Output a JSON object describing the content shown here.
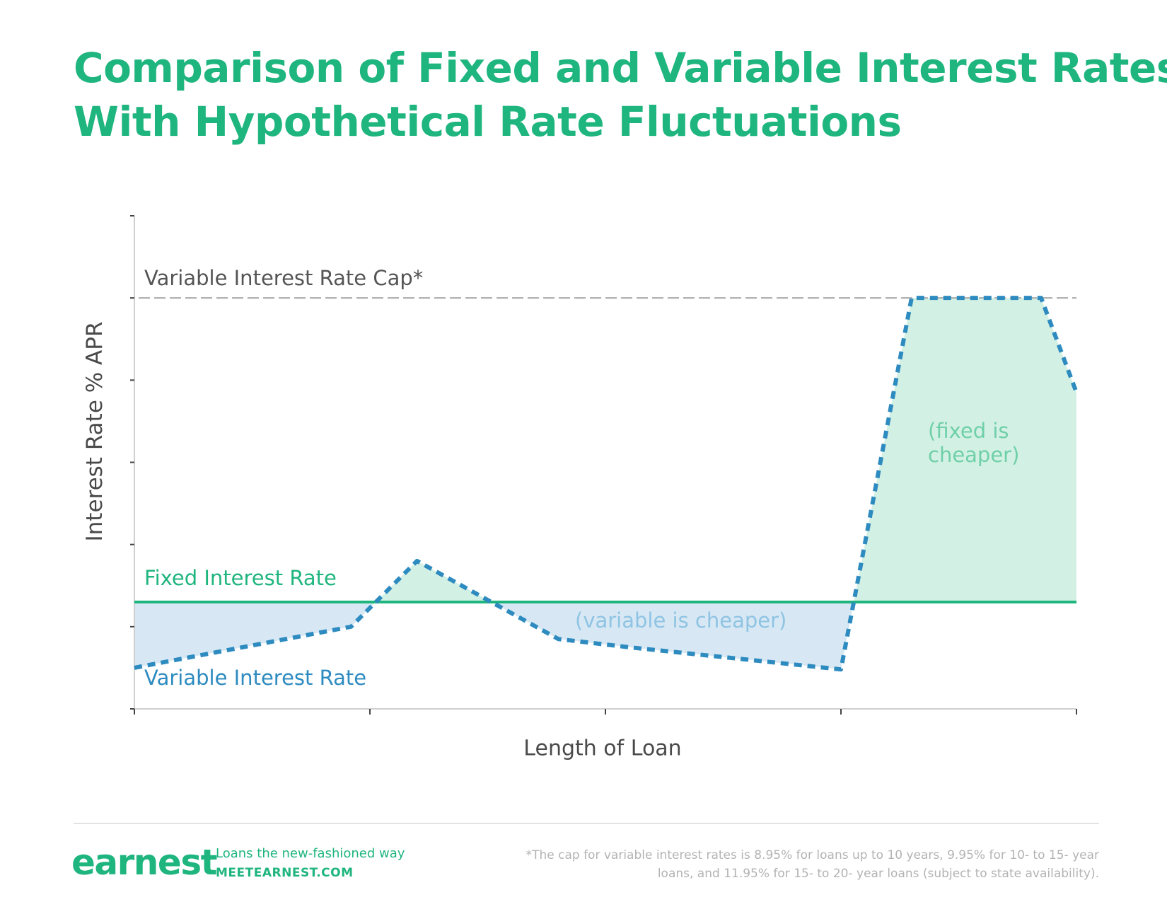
{
  "header": {
    "title_line1": "Comparison of Fixed and Variable Interest Rates",
    "title_line2": "With Hypothetical Rate Fluctuations"
  },
  "chart_data": {
    "type": "area",
    "title": "Comparison of Fixed and Variable Interest Rates With Hypothetical Rate Fluctuations",
    "xlabel": "Length of Loan",
    "ylabel": "Interest Rate % APR",
    "xlim": [
      0,
      4
    ],
    "ylim": [
      0,
      6
    ],
    "x_ticks": [
      0,
      1,
      2,
      3,
      4
    ],
    "y_ticks": [
      0,
      1,
      2,
      3,
      4,
      5,
      6
    ],
    "grid": false,
    "fixed_rate": 1.3,
    "cap_rate": 5,
    "series": [
      {
        "name": "Variable Interest Rate",
        "style": "dashed",
        "color": "#2e8bc0",
        "x": [
          0,
          0.92,
          1.2,
          1.8,
          2.1,
          3.0,
          3.3,
          3.85,
          4.0
        ],
        "y": [
          0.5,
          1.0,
          1.8,
          0.85,
          0.75,
          0.48,
          5.0,
          5.0,
          3.85
        ]
      },
      {
        "name": "Fixed Interest Rate",
        "style": "solid",
        "color": "#1fb57f",
        "x": [
          0,
          4
        ],
        "y": [
          1.3,
          1.3
        ]
      }
    ],
    "reference_lines": [
      {
        "name": "Variable Interest Rate Cap*",
        "y": 5,
        "style": "dashed",
        "color": "#aaaaaa"
      }
    ],
    "annotations": {
      "cap_label": "Variable Interest Rate Cap*",
      "fixed_label": "Fixed Interest Rate",
      "variable_label": "Variable Interest Rate",
      "variable_cheaper": "(variable is cheaper)",
      "fixed_cheaper_line1": "(fixed is",
      "fixed_cheaper_line2": "cheaper)"
    },
    "colors": {
      "fixed_line": "#1fb57f",
      "variable_line": "#2e8bc0",
      "fixed_cheaper_fill": "#d3f0e4",
      "variable_cheaper_fill": "#d7e8f4",
      "cap_line": "#aaaaaa",
      "axis": "#d0d0d0",
      "ticks": "#444444"
    }
  },
  "footer": {
    "logo": "earnest",
    "tagline": "Loans the new-fashioned way",
    "site": "MEETEARNEST.COM",
    "footnote_line1": "*The cap for variable interest rates is 8.95% for loans up to 10  years, 9.95% for 10- to 15- year",
    "footnote_line2": "loans, and 11.95% for 15- to 20- year loans (subject to state availability)."
  }
}
